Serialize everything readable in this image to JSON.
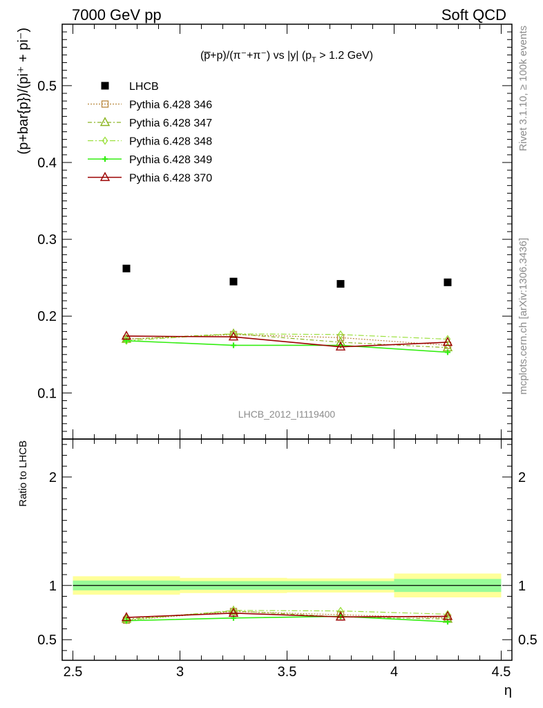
{
  "header": {
    "left": "7000 GeV pp",
    "right": "Soft QCD"
  },
  "side": {
    "rivet": "Rivet 3.1.10, ≥ 100k events",
    "mcplots": "mcplots.cern.ch [arXiv:1306.3436]"
  },
  "colors": {
    "band_inner": "#98fb98",
    "band_outer": "#ffff99"
  },
  "chart_data": [
    {
      "type": "scatter",
      "title": "(p̅+p)/(π⁻+π⁻) vs |y| (p_T > 1.2 GeV)",
      "title_parts": {
        "main": "(p̅+p)/(π⁻+π⁻) vs |y| (p",
        "sub": "T",
        "tail": " > 1.2 GeV)"
      },
      "ylabel": "(p+bar{p})/(pi⁺ + pi⁻)",
      "watermark": "LHCB_2012_I1119400",
      "xlim": [
        2.45,
        4.55
      ],
      "ylim": [
        0.04,
        0.58
      ],
      "yticks": [
        "0.1",
        "0.2",
        "0.3",
        "0.4",
        "0.5"
      ],
      "x": [
        2.75,
        3.25,
        3.75,
        4.25
      ],
      "series": [
        {
          "name": "LHCB",
          "marker": "square-filled",
          "color": "#000000",
          "values": [
            0.262,
            0.245,
            0.242,
            0.244
          ]
        },
        {
          "name": "Pythia 6.428 346",
          "marker": "square-open",
          "color": "#b8863c",
          "dash": "2,2",
          "values": [
            0.17,
            0.176,
            0.172,
            0.162
          ]
        },
        {
          "name": "Pythia 6.428 347",
          "marker": "triangle-open",
          "color": "#8bb520",
          "dash": "6,3,2,3",
          "values": [
            0.17,
            0.177,
            0.166,
            0.159
          ]
        },
        {
          "name": "Pythia 6.428 348",
          "marker": "diamond-open",
          "color": "#9be03c",
          "dash": "8,3,2,3",
          "values": [
            0.168,
            0.177,
            0.176,
            0.17
          ]
        },
        {
          "name": "Pythia 6.428 349",
          "marker": "cross",
          "color": "#33ee11",
          "dash": "",
          "values": [
            0.168,
            0.162,
            0.162,
            0.153
          ]
        },
        {
          "name": "Pythia 6.428 370",
          "marker": "triangle-open",
          "color": "#9b0000",
          "dash": "",
          "values": [
            0.174,
            0.173,
            0.16,
            0.166
          ]
        }
      ]
    },
    {
      "type": "scatter",
      "ylabel": "Ratio to LHCB",
      "xlabel": "η",
      "xlim": [
        2.45,
        4.55
      ],
      "ylim": [
        0.31,
        2.35
      ],
      "xticks": [
        "2.5",
        "3",
        "3.5",
        "4",
        "4.5"
      ],
      "yticks": [
        "0.5",
        "1",
        "2"
      ],
      "x": [
        2.75,
        3.25,
        3.75,
        4.25
      ],
      "bands": [
        {
          "x0": 2.5,
          "x1": 3.0,
          "inner": [
            0.955,
            1.045
          ],
          "outer": [
            0.915,
            1.085
          ]
        },
        {
          "x0": 3.0,
          "x1": 3.5,
          "inner": [
            0.96,
            1.04
          ],
          "outer": [
            0.93,
            1.07
          ]
        },
        {
          "x0": 3.5,
          "x1": 4.0,
          "inner": [
            0.96,
            1.04
          ],
          "outer": [
            0.935,
            1.065
          ]
        },
        {
          "x0": 4.0,
          "x1": 4.5,
          "inner": [
            0.94,
            1.06
          ],
          "outer": [
            0.89,
            1.11
          ]
        }
      ],
      "series": [
        {
          "name": "Pythia 6.428 346",
          "values": [
            0.68,
            0.76,
            0.73,
            0.7
          ]
        },
        {
          "name": "Pythia 6.428 347",
          "values": [
            0.69,
            0.765,
            0.71,
            0.69
          ]
        },
        {
          "name": "Pythia 6.428 348",
          "values": [
            0.68,
            0.77,
            0.765,
            0.735
          ]
        },
        {
          "name": "Pythia 6.428 349",
          "values": [
            0.675,
            0.7,
            0.715,
            0.665
          ]
        },
        {
          "name": "Pythia 6.428 370",
          "values": [
            0.705,
            0.745,
            0.71,
            0.715
          ]
        }
      ]
    }
  ]
}
